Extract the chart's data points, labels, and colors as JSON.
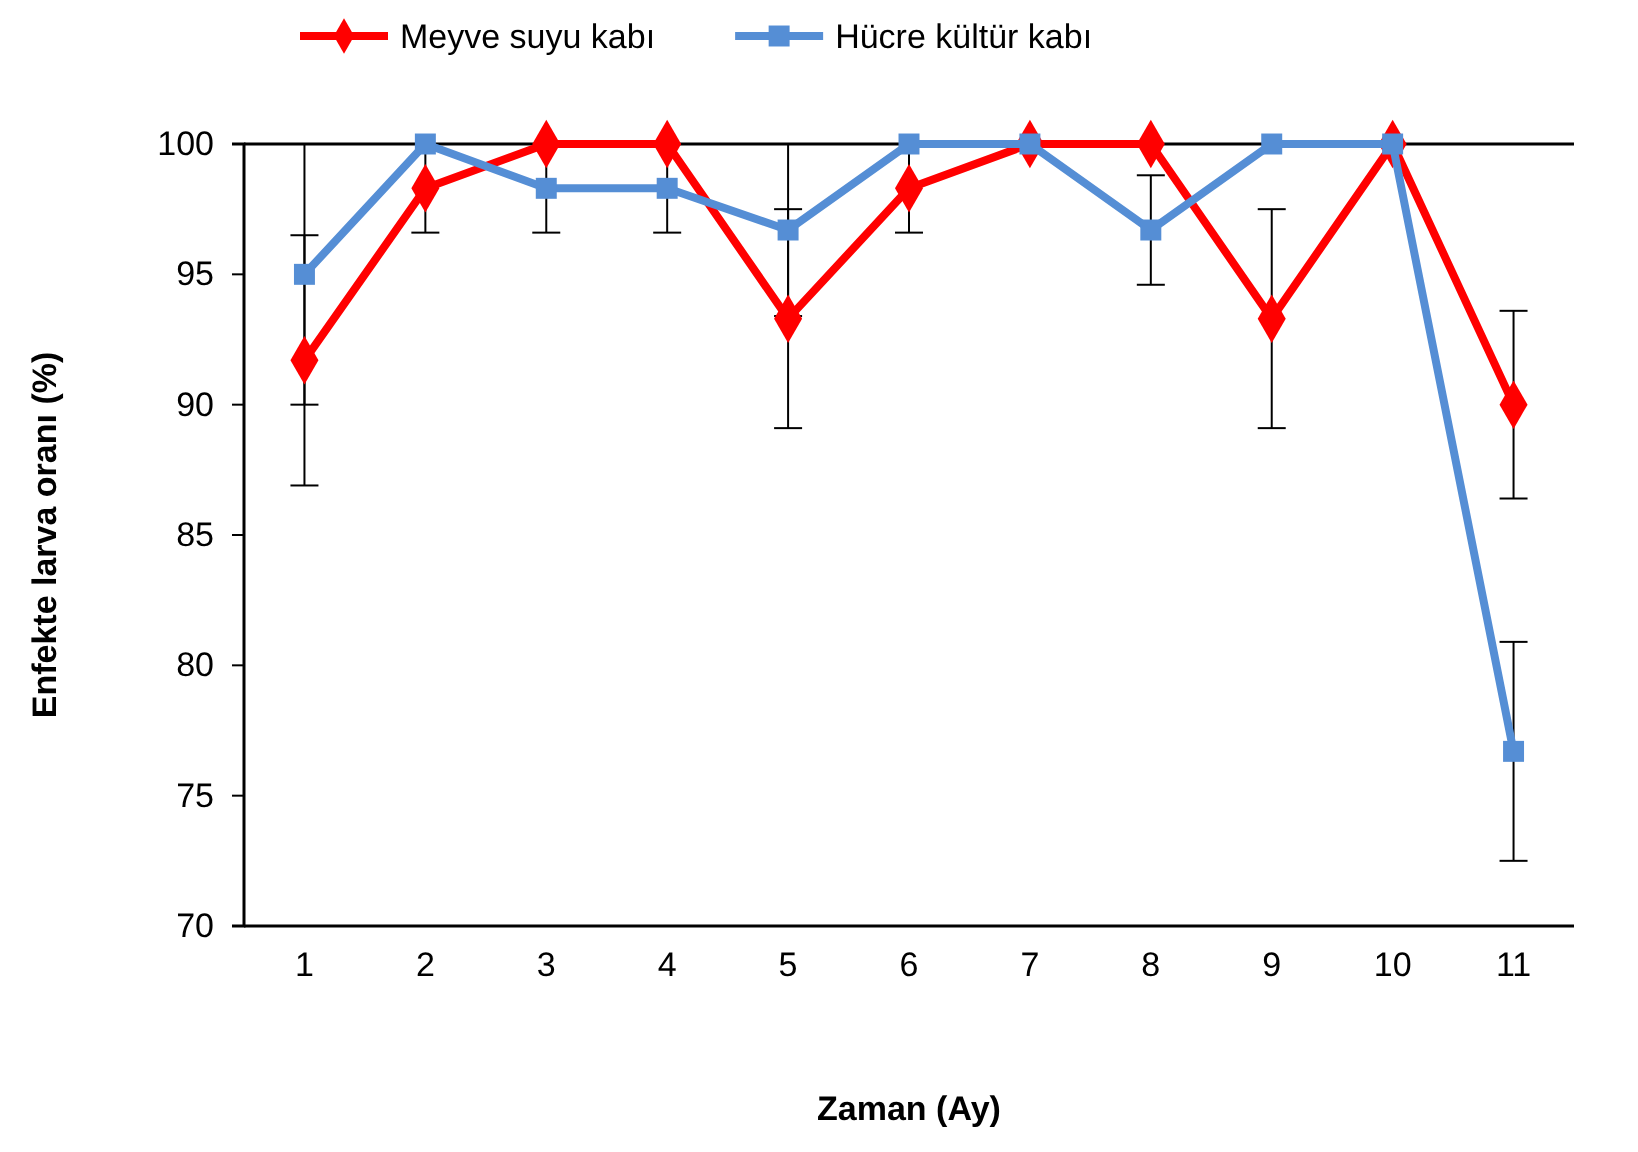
{
  "chart_data": {
    "type": "line",
    "xlabel": "Zaman (Ay)",
    "ylabel": "Enfekte larva oranı (%)",
    "categories": [
      "1",
      "2",
      "3",
      "4",
      "5",
      "6",
      "7",
      "8",
      "9",
      "10",
      "11"
    ],
    "ylim": [
      70,
      100
    ],
    "yticks": [
      70,
      75,
      80,
      85,
      90,
      95,
      100
    ],
    "legend": "top",
    "series": [
      {
        "name": "Meyve suyu kabı",
        "color": "#ff0000",
        "marker": "diamond",
        "values": [
          91.7,
          98.3,
          100,
          100,
          93.3,
          98.3,
          100,
          100,
          93.3,
          100,
          90
        ],
        "errors": [
          4.8,
          1.7,
          null,
          null,
          4.2,
          1.7,
          null,
          null,
          4.2,
          null,
          3.6
        ]
      },
      {
        "name": "Hücre kültür kabı",
        "color": "#558ed5",
        "marker": "square",
        "values": [
          95,
          100,
          98.3,
          98.3,
          96.7,
          100,
          100,
          96.7,
          100,
          100,
          76.7
        ],
        "errors": [
          5,
          null,
          1.7,
          1.7,
          3.3,
          null,
          null,
          2.1,
          null,
          null,
          4.2
        ]
      }
    ]
  }
}
